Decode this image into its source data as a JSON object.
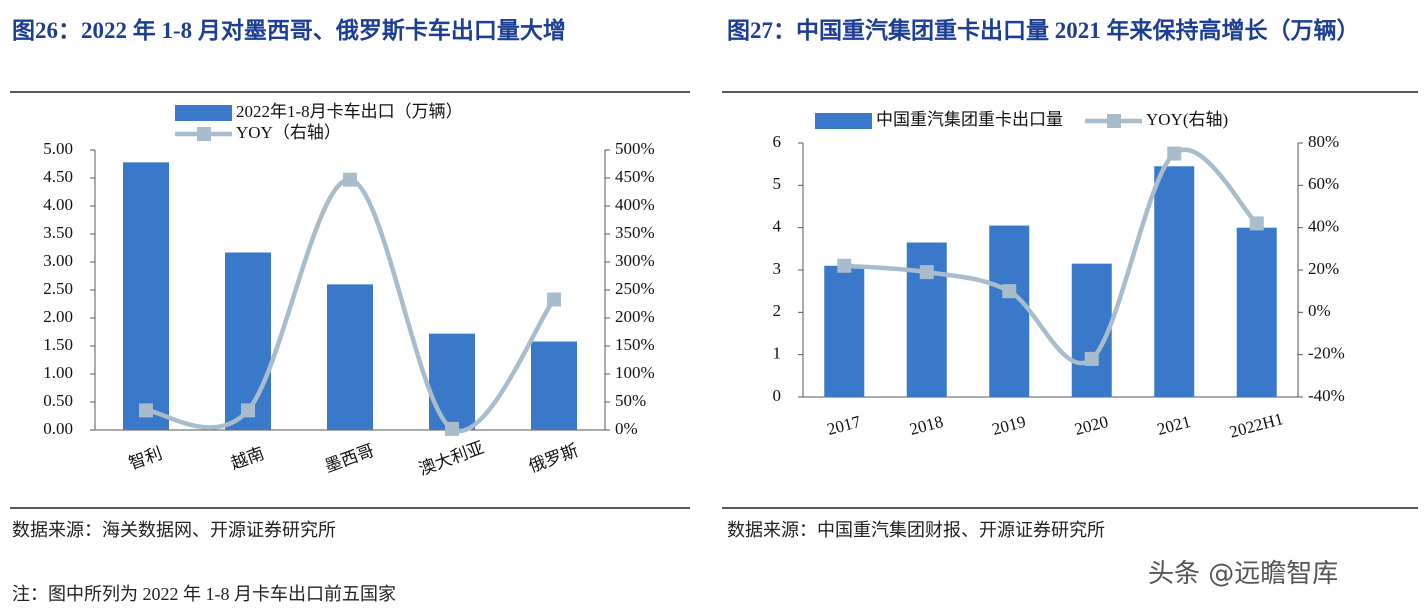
{
  "chart_data": [
    {
      "type": "bar",
      "title": "图26：2022 年 1-8 月对墨西哥、俄罗斯卡车出口量大增",
      "categories": [
        "智利",
        "越南",
        "墨西哥",
        "澳大利亚",
        "俄罗斯"
      ],
      "series": [
        {
          "name": "2022年1-8月卡车出口（万辆）",
          "color": "#3a78c9",
          "values": [
            4.78,
            3.17,
            2.6,
            1.72,
            1.58
          ]
        },
        {
          "name": "YOY（右轴）",
          "color": "#a9bccb",
          "axis": "y2",
          "type": "line",
          "values": [
            35,
            35,
            447,
            2,
            233
          ]
        }
      ],
      "ylim": [
        0,
        5
      ],
      "yticks": [
        {
          "value": 0,
          "label": "0.00"
        },
        {
          "value": 0.5,
          "label": "0.50"
        },
        {
          "value": 1,
          "label": "1.00"
        },
        {
          "value": 1.5,
          "label": "1.50"
        },
        {
          "value": 2,
          "label": "2.00"
        },
        {
          "value": 2.5,
          "label": "2.50"
        },
        {
          "value": 3,
          "label": "3.00"
        },
        {
          "value": 3.5,
          "label": "3.50"
        },
        {
          "value": 4,
          "label": "4.00"
        },
        {
          "value": 4.5,
          "label": "4.50"
        },
        {
          "value": 5,
          "label": "5.00"
        }
      ],
      "y2lim": [
        0,
        500
      ],
      "y2ticks": [
        {
          "value": 0,
          "label": "0%"
        },
        {
          "value": 50,
          "label": "50%"
        },
        {
          "value": 100,
          "label": "100%"
        },
        {
          "value": 150,
          "label": "150%"
        },
        {
          "value": 200,
          "label": "200%"
        },
        {
          "value": 250,
          "label": "250%"
        },
        {
          "value": 300,
          "label": "300%"
        },
        {
          "value": 350,
          "label": "350%"
        },
        {
          "value": 400,
          "label": "400%"
        },
        {
          "value": 450,
          "label": "450%"
        },
        {
          "value": 500,
          "label": "500%"
        }
      ],
      "legend": "top",
      "source": "数据来源：海关数据网、开源证券研究所"
    },
    {
      "type": "bar",
      "title": "图27：中国重汽集团重卡出口量 2021 年来保持高增长（万辆）",
      "categories": [
        "2017",
        "2018",
        "2019",
        "2020",
        "2021",
        "2022H1"
      ],
      "series": [
        {
          "name": "中国重汽集团重卡出口量",
          "color": "#3a78c9",
          "values": [
            3.1,
            3.65,
            4.05,
            3.15,
            5.45,
            4.0
          ]
        },
        {
          "name": "YOY(右轴)",
          "color": "#a9bccb",
          "axis": "y2",
          "type": "line",
          "values": [
            22,
            19,
            10,
            -22,
            75,
            42
          ]
        }
      ],
      "ylim": [
        0,
        6
      ],
      "yticks": [
        0,
        1,
        2,
        3,
        4,
        5,
        6
      ],
      "y2lim": [
        -40,
        80
      ],
      "y2ticks": [
        {
          "value": -40,
          "label": "-40%"
        },
        {
          "value": -20,
          "label": "-20%"
        },
        {
          "value": 0,
          "label": "0%"
        },
        {
          "value": 20,
          "label": "20%"
        },
        {
          "value": 40,
          "label": "40%"
        },
        {
          "value": 60,
          "label": "60%"
        },
        {
          "value": 80,
          "label": "80%"
        }
      ],
      "legend": "top",
      "source": "数据来源：中国重汽集团财报、开源证券研究所"
    }
  ],
  "note": "注：图中所列为 2022 年 1-8 月卡车出口前五国家",
  "watermark": "头条 @远瞻智库"
}
